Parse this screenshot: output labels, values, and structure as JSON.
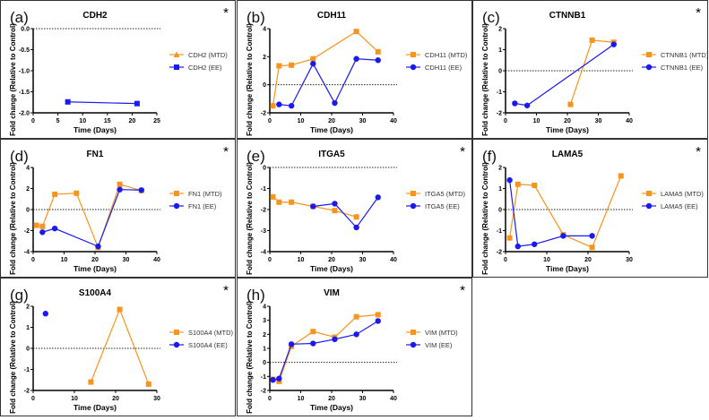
{
  "colors": {
    "mtd": "#F7941D",
    "ee": "#1A1AF0"
  },
  "chart_data": [
    {
      "type": "line",
      "panel_label": "(a)",
      "title": "CDH2",
      "asterisk": "*",
      "xlabel": "Time (Days)",
      "ylabel": "Fold change (Relative to Control)",
      "xlim": [
        0,
        25
      ],
      "ylim": [
        -2,
        0
      ],
      "xticks": [
        "0",
        "5",
        "10",
        "15",
        "20",
        "25"
      ],
      "yticks": [
        "0.0",
        "-0.5",
        "-1.0",
        "-1.5",
        "-2.0"
      ],
      "zero_line": true,
      "legend": "right",
      "series": [
        {
          "name": "CDH2 (MTD)",
          "marker": "triangle",
          "points": [
            [
              21,
              -1.78
            ]
          ]
        },
        {
          "name": "CDH2 (EE)",
          "marker": "square",
          "points": [
            [
              7,
              -1.74
            ],
            [
              21,
              -1.78
            ]
          ]
        }
      ]
    },
    {
      "type": "line",
      "panel_label": "(b)",
      "title": "CDH11",
      "asterisk": "",
      "xlabel": "Time (Days)",
      "ylabel": "Fold change (Relative to Control)",
      "xlim": [
        0,
        40
      ],
      "ylim": [
        -2,
        4
      ],
      "xticks": [
        "0",
        "10",
        "20",
        "30",
        "40"
      ],
      "yticks": [
        "4",
        "2",
        "0",
        "-2"
      ],
      "zero_line": true,
      "legend": "right",
      "series": [
        {
          "name": "CDH11 (MTD)",
          "marker": "square",
          "points": [
            [
              1,
              -1.5
            ],
            [
              3,
              1.35
            ],
            [
              7,
              1.4
            ],
            [
              14,
              1.85
            ],
            [
              28,
              3.8
            ],
            [
              35,
              2.35
            ]
          ]
        },
        {
          "name": "CDH11 (EE)",
          "marker": "circle",
          "points": [
            [
              3,
              -1.4
            ],
            [
              7,
              -1.5
            ],
            [
              14,
              1.5
            ],
            [
              21,
              -1.3
            ],
            [
              28,
              1.85
            ],
            [
              35,
              1.75
            ]
          ]
        }
      ]
    },
    {
      "type": "line",
      "panel_label": "(c)",
      "title": "CTNNB1",
      "asterisk": "*",
      "xlabel": "Time (Days)",
      "ylabel": "Fold change (Relative to Control)",
      "xlim": [
        0,
        40
      ],
      "ylim": [
        -2,
        2
      ],
      "xticks": [
        "0",
        "10",
        "20",
        "30",
        "40"
      ],
      "yticks": [
        "2",
        "1",
        "0",
        "-1",
        "-2"
      ],
      "zero_line": true,
      "legend": "right",
      "series": [
        {
          "name": "CTNNB1 (MTD)",
          "marker": "square",
          "points": [
            [
              21,
              -1.6
            ],
            [
              28,
              1.45
            ],
            [
              35,
              1.35
            ]
          ]
        },
        {
          "name": "CTNNB1 (EE)",
          "marker": "circle",
          "points": [
            [
              3,
              -1.55
            ],
            [
              7,
              -1.65
            ],
            [
              35,
              1.25
            ]
          ]
        }
      ]
    },
    {
      "type": "line",
      "panel_label": "(d)",
      "title": "FN1",
      "asterisk": "*",
      "xlabel": "Time (Days)",
      "ylabel": "Fold change (Relative to Control)",
      "xlim": [
        0,
        40
      ],
      "ylim": [
        -4,
        4
      ],
      "xticks": [
        "0",
        "10",
        "20",
        "30",
        "40"
      ],
      "yticks": [
        "4",
        "2",
        "0",
        "-2",
        "-4"
      ],
      "zero_line": true,
      "legend": "right",
      "series": [
        {
          "name": "FN1 (MTD)",
          "marker": "square",
          "points": [
            [
              1,
              -1.5
            ],
            [
              3,
              -1.6
            ],
            [
              7,
              1.45
            ],
            [
              14,
              1.55
            ],
            [
              21,
              -3.6
            ],
            [
              28,
              2.4
            ],
            [
              35,
              1.8
            ]
          ]
        },
        {
          "name": "FN1 (EE)",
          "marker": "circle",
          "points": [
            [
              3,
              -2.15
            ],
            [
              7,
              -1.8
            ],
            [
              21,
              -3.5
            ],
            [
              28,
              1.9
            ],
            [
              35,
              1.85
            ]
          ]
        }
      ]
    },
    {
      "type": "line",
      "panel_label": "(e)",
      "title": "ITGA5",
      "asterisk": "*",
      "xlabel": "Time (Days)",
      "ylabel": "Fold change (Relative to Control)",
      "xlim": [
        0,
        40
      ],
      "ylim": [
        -4,
        0
      ],
      "xticks": [
        "0",
        "10",
        "20",
        "30",
        "40"
      ],
      "yticks": [
        "0",
        "-1",
        "-2",
        "-3",
        "-4"
      ],
      "zero_line": true,
      "legend": "right",
      "series": [
        {
          "name": "ITGA5 (MTD)",
          "marker": "square",
          "points": [
            [
              1,
              -1.4
            ],
            [
              3,
              -1.65
            ],
            [
              7,
              -1.65
            ],
            [
              14,
              -1.85
            ],
            [
              21,
              -2.05
            ],
            [
              28,
              -2.35
            ]
          ]
        },
        {
          "name": "ITGA5 (EE)",
          "marker": "circle",
          "points": [
            [
              14,
              -1.85
            ],
            [
              21,
              -1.72
            ],
            [
              28,
              -2.85
            ],
            [
              35,
              -1.42
            ]
          ]
        }
      ]
    },
    {
      "type": "line",
      "panel_label": "(f)",
      "title": "LAMA5",
      "asterisk": "*",
      "xlabel": "Time (Days)",
      "ylabel": "Fold change (Relative to Control)",
      "xlim": [
        0,
        30
      ],
      "ylim": [
        -2,
        2
      ],
      "xticks": [
        "0",
        "10",
        "20",
        "30"
      ],
      "yticks": [
        "2",
        "1",
        "0",
        "-1",
        "-2"
      ],
      "zero_line": true,
      "legend": "right",
      "series": [
        {
          "name": "LAMA5 (MTD)",
          "marker": "square",
          "points": [
            [
              1,
              -1.35
            ],
            [
              3,
              1.2
            ],
            [
              7,
              1.15
            ],
            [
              14,
              -1.2
            ],
            [
              21,
              -1.8
            ],
            [
              28,
              1.6
            ]
          ]
        },
        {
          "name": "LAMA5 (EE)",
          "marker": "circle",
          "points": [
            [
              1,
              1.4
            ],
            [
              3,
              -1.75
            ],
            [
              7,
              -1.65
            ],
            [
              14,
              -1.25
            ],
            [
              21,
              -1.25
            ]
          ]
        }
      ]
    },
    {
      "type": "line",
      "panel_label": "(g)",
      "title": "S100A4",
      "asterisk": "*",
      "xlabel": "Time (Days)",
      "ylabel": "Fold change (Relative to Control)",
      "xlim": [
        0,
        30
      ],
      "ylim": [
        -2,
        2
      ],
      "xticks": [
        "0",
        "10",
        "20",
        "30"
      ],
      "yticks": [
        "2",
        "1",
        "0",
        "-1",
        "-2"
      ],
      "zero_line": true,
      "legend": "right",
      "series": [
        {
          "name": "S100A4 (MTD)",
          "marker": "square",
          "points": [
            [
              14,
              -1.6
            ],
            [
              21,
              1.85
            ],
            [
              28,
              -1.7
            ]
          ]
        },
        {
          "name": "S100A4 (EE)",
          "marker": "circle",
          "points": [
            [
              3,
              1.65
            ]
          ]
        }
      ]
    },
    {
      "type": "line",
      "panel_label": "(h)",
      "title": "VIM",
      "asterisk": "*",
      "xlabel": "Time (Days)",
      "ylabel": "Fold change (Relative to Control)",
      "xlim": [
        0,
        40
      ],
      "ylim": [
        -2,
        4
      ],
      "xticks": [
        "0",
        "10",
        "20",
        "30",
        "40"
      ],
      "yticks": [
        "4",
        "3",
        "2",
        "1",
        "0",
        "-1",
        "-2"
      ],
      "zero_line": true,
      "legend": "right",
      "series": [
        {
          "name": "VIM (MTD)",
          "marker": "square",
          "points": [
            [
              1,
              -1.2
            ],
            [
              3,
              -1.35
            ],
            [
              7,
              1.15
            ],
            [
              14,
              2.2
            ],
            [
              21,
              1.8
            ],
            [
              28,
              3.25
            ],
            [
              35,
              3.4
            ]
          ]
        },
        {
          "name": "VIM (EE)",
          "marker": "circle",
          "points": [
            [
              1,
              -1.25
            ],
            [
              3,
              -1.15
            ],
            [
              7,
              1.3
            ],
            [
              14,
              1.35
            ],
            [
              21,
              1.65
            ],
            [
              28,
              2.0
            ],
            [
              35,
              2.95
            ]
          ]
        }
      ]
    }
  ]
}
